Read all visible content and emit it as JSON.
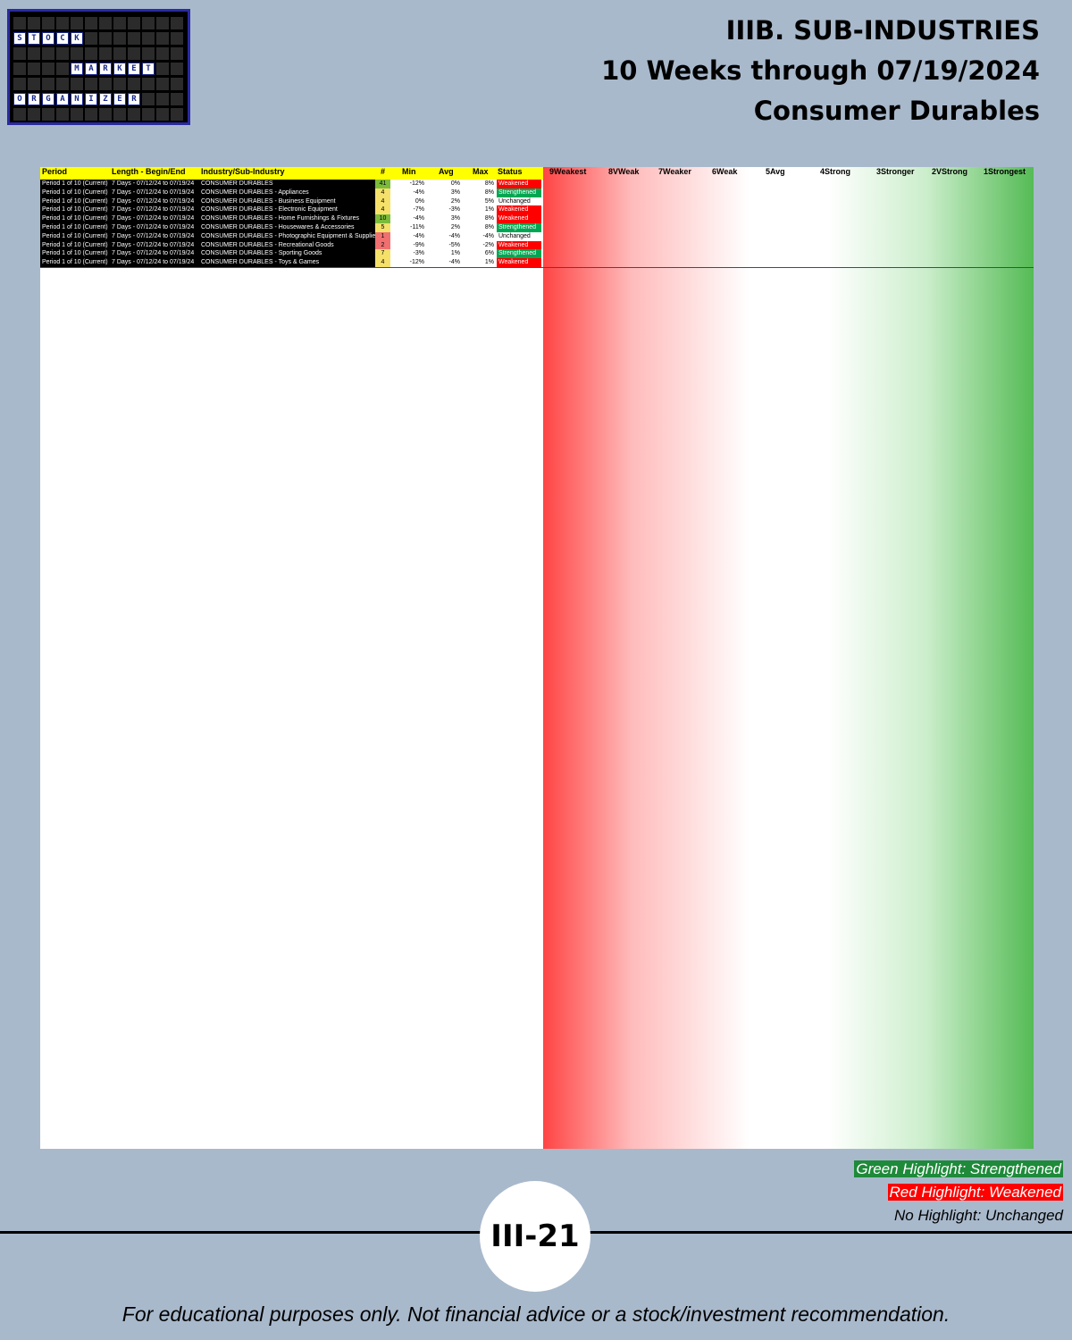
{
  "logo": {
    "rows": [
      "STOCK",
      "MARKET",
      "ORGANIZER"
    ]
  },
  "header": {
    "line1": "IIIB. SUB-INDUSTRIES",
    "line2": "10 Weeks through 07/19/2024",
    "line3": "Consumer Durables"
  },
  "columns": [
    "Period",
    "Length - Begin/End",
    "Industry/Sub-Industry",
    "#",
    "Min",
    "Avg",
    "Max",
    "Status",
    "9Weakest",
    "8VWeak",
    "7Weaker",
    "6Weak",
    "5Avg",
    "4Strong",
    "3Stronger",
    "2VStrong",
    "1Strongest"
  ],
  "rows": [
    [
      "Period 1 of 10 (Current)",
      "7 Days - 07/12/24 to 07/19/24",
      "CONSUMER DURABLES",
      "41",
      "-12%",
      "0%",
      "8%",
      "Weakened"
    ],
    [
      "Period 1 of 10 (Current)",
      "7 Days - 07/12/24 to 07/19/24",
      "CONSUMER DURABLES - Appliances",
      "4",
      "-4%",
      "3%",
      "8%",
      "Strengthened"
    ],
    [
      "Period 1 of 10 (Current)",
      "7 Days - 07/12/24 to 07/19/24",
      "CONSUMER DURABLES - Business Equipment",
      "4",
      "0%",
      "2%",
      "5%",
      "Unchanged"
    ],
    [
      "Period 1 of 10 (Current)",
      "7 Days - 07/12/24 to 07/19/24",
      "CONSUMER DURABLES - Electronic Equipment",
      "4",
      "-7%",
      "-3%",
      "1%",
      "Weakened"
    ],
    [
      "Period 1 of 10 (Current)",
      "7 Days - 07/12/24 to 07/19/24",
      "CONSUMER DURABLES - Home Furnishings & Fixtures",
      "10",
      "-4%",
      "3%",
      "8%",
      "Weakened"
    ],
    [
      "Period 1 of 10 (Current)",
      "7 Days - 07/12/24 to 07/19/24",
      "CONSUMER DURABLES - Housewares & Accessories",
      "5",
      "-11%",
      "2%",
      "8%",
      "Strengthened"
    ],
    [
      "Period 1 of 10 (Current)",
      "7 Days - 07/12/24 to 07/19/24",
      "CONSUMER DURABLES - Photographic Equipment & Supplies",
      "1",
      "-4%",
      "-4%",
      "-4%",
      "Unchanged"
    ],
    [
      "Period 1 of 10 (Current)",
      "7 Days - 07/12/24 to 07/19/24",
      "CONSUMER DURABLES - Recreational Goods",
      "2",
      "-9%",
      "-5%",
      "-2%",
      "Weakened"
    ],
    [
      "Period 1 of 10 (Current)",
      "7 Days - 07/12/24 to 07/19/24",
      "CONSUMER DURABLES - Sporting Goods",
      "7",
      "-3%",
      "1%",
      "6%",
      "Strengthened"
    ],
    [
      "Period 1 of 10 (Current)",
      "7 Days - 07/12/24 to 07/19/24",
      "CONSUMER DURABLES - Toys & Games",
      "4",
      "-12%",
      "-4%",
      "1%",
      "Weakened"
    ]
  ],
  "legend": {
    "green": "Green Highlight: Strengthened",
    "red": "Red Highlight: Weakened",
    "none": "No Highlight: Unchanged"
  },
  "page_number": "III-21",
  "disclaimer": "For educational purposes only. Not financial advice or a stock/investment recommendation."
}
